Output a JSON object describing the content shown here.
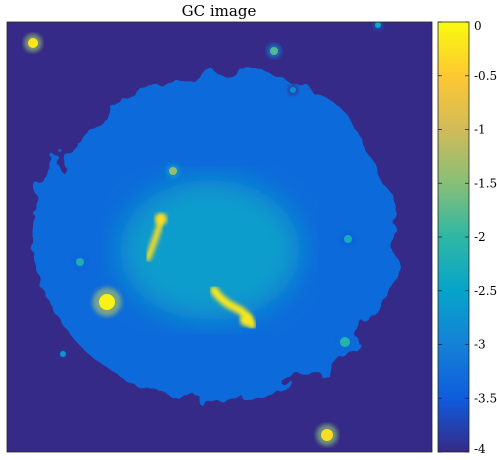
{
  "chart_data": {
    "type": "heatmap",
    "title": "GC image",
    "xlabel": "",
    "ylabel": "",
    "colormap": "parula",
    "colorbar": {
      "range": [
        -4,
        0
      ],
      "ticks": [
        0,
        -0.5,
        -1,
        -1.5,
        -2,
        -2.5,
        -3,
        -3.5,
        -4
      ],
      "tick_labels": [
        "0",
        "-0.5",
        "-1",
        "-1.5",
        "-2",
        "-2.5",
        "-3",
        "-3.5",
        "-4"
      ],
      "position": "right"
    },
    "background_value": -4,
    "diffuse_cloud": {
      "base_value": -3.3,
      "peak_value": -2.6
    },
    "bright_features": [
      {
        "kind": "point-source",
        "value": -0.2,
        "location": "upper-left corner"
      },
      {
        "kind": "point-source",
        "value": -1.8,
        "location": "top center-right"
      },
      {
        "kind": "point-source",
        "value": -2.4,
        "location": "top right edge"
      },
      {
        "kind": "point-source",
        "value": -2.8,
        "location": "upper middle-right"
      },
      {
        "kind": "point-source",
        "value": -1.4,
        "location": "upper center"
      },
      {
        "kind": "jet",
        "value": -0.3,
        "location": "center-left"
      },
      {
        "kind": "point-source",
        "value": -0.1,
        "location": "lower left"
      },
      {
        "kind": "point-source",
        "value": -2.2,
        "location": "middle left"
      },
      {
        "kind": "point-source",
        "value": -2.3,
        "location": "middle right"
      },
      {
        "kind": "arc",
        "value": -0.2,
        "location": "lower center-right"
      },
      {
        "kind": "point-source",
        "value": -2.1,
        "location": "lower right"
      },
      {
        "kind": "point-source",
        "value": -2.7,
        "location": "lower left edge"
      },
      {
        "kind": "point-source",
        "value": -0.3,
        "location": "bottom center-right"
      }
    ]
  }
}
